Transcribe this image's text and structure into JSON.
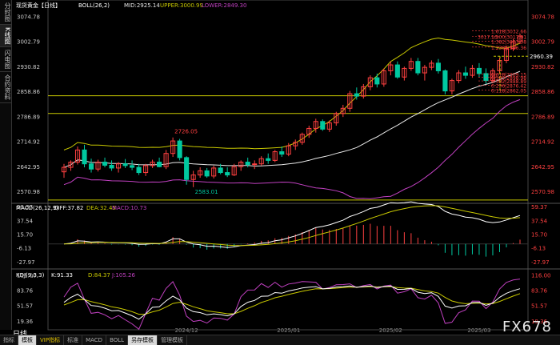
{
  "left_tabs": [
    "分时图",
    "K线图",
    "闪电图",
    "合约资料"
  ],
  "bottom_tabs": [
    "指标",
    "模板",
    "VIP指标",
    "标准",
    "MACD",
    "BOLL",
    "另存模板",
    "管理模板"
  ],
  "period_label": "日线",
  "watermark": "FX678",
  "colors": {
    "up": "#ff4040",
    "down": "#00c8a0",
    "mid": "#e8e8e8",
    "upper": "#c8c800",
    "lower": "#c040c0",
    "grid": "#c8c800",
    "bg": "#000000",
    "axis": "#888888"
  },
  "chart_data": {
    "type": "candlestick",
    "title": "现货黄金【日线】",
    "indicator_label": "BOLL(26,2)",
    "legend": {
      "mid": "MID:2925.14",
      "upper": "UPPER:3000.99",
      "lower": "LOWER:2849.30"
    },
    "price_ticks": [
      3074.78,
      3002.79,
      2930.82,
      2858.86,
      2786.89,
      2714.92,
      2642.95,
      2570.98
    ],
    "ylim": [
      2541,
      3085
    ],
    "x_labels": [
      "2024/12",
      "2025/01",
      "2025/02",
      "2025/03"
    ],
    "annotations": {
      "high": "2726.05",
      "low": "2583.01"
    },
    "fib_up_labels": [
      "1.618|3032.66",
      "1.500|3017.01",
      "1.382|3003.38",
      "1.236|2986.36"
    ],
    "fib_up_values": [
      3032.66,
      3017.01,
      3003.38,
      2986.36
    ],
    "fib_left_label": "3017.10",
    "fib_down_labels": [
      "0.618|2909.15",
      "0.500|2898.98",
      "0.382|2888.89",
      "0.236|2876.42",
      "0.118|2862.05"
    ],
    "fib_down_values": [
      2909.15,
      2898.98,
      2888.89,
      2876.42,
      2862.05
    ],
    "fib_price": "2960.39",
    "hlines": [
      2846,
      2795,
      2546
    ],
    "candles": [
      [
        2627,
        2650,
        2610,
        2640
      ],
      [
        2640,
        2660,
        2630,
        2655
      ],
      [
        2655,
        2700,
        2648,
        2690
      ],
      [
        2690,
        2705,
        2640,
        2650
      ],
      [
        2650,
        2665,
        2625,
        2635
      ],
      [
        2635,
        2662,
        2628,
        2655
      ],
      [
        2655,
        2668,
        2640,
        2646
      ],
      [
        2646,
        2660,
        2630,
        2638
      ],
      [
        2638,
        2655,
        2625,
        2650
      ],
      [
        2650,
        2664,
        2638,
        2645
      ],
      [
        2645,
        2660,
        2632,
        2640
      ],
      [
        2640,
        2650,
        2618,
        2625
      ],
      [
        2625,
        2650,
        2615,
        2645
      ],
      [
        2645,
        2662,
        2638,
        2655
      ],
      [
        2655,
        2668,
        2640,
        2642
      ],
      [
        2642,
        2690,
        2635,
        2680
      ],
      [
        2680,
        2726,
        2670,
        2716
      ],
      [
        2716,
        2722,
        2660,
        2668
      ],
      [
        2668,
        2672,
        2590,
        2605
      ],
      [
        2605,
        2630,
        2583,
        2618
      ],
      [
        2618,
        2640,
        2610,
        2630
      ],
      [
        2630,
        2638,
        2610,
        2615
      ],
      [
        2615,
        2645,
        2608,
        2638
      ],
      [
        2638,
        2650,
        2620,
        2625
      ],
      [
        2625,
        2640,
        2612,
        2618
      ],
      [
        2618,
        2650,
        2615,
        2642
      ],
      [
        2642,
        2660,
        2630,
        2655
      ],
      [
        2655,
        2668,
        2640,
        2648
      ],
      [
        2648,
        2660,
        2635,
        2650
      ],
      [
        2650,
        2672,
        2645,
        2665
      ],
      [
        2665,
        2680,
        2650,
        2660
      ],
      [
        2660,
        2690,
        2655,
        2685
      ],
      [
        2685,
        2700,
        2670,
        2678
      ],
      [
        2678,
        2710,
        2672,
        2702
      ],
      [
        2702,
        2720,
        2690,
        2712
      ],
      [
        2712,
        2740,
        2705,
        2735
      ],
      [
        2735,
        2760,
        2725,
        2752
      ],
      [
        2752,
        2780,
        2740,
        2772
      ],
      [
        2772,
        2778,
        2745,
        2750
      ],
      [
        2750,
        2775,
        2742,
        2768
      ],
      [
        2768,
        2800,
        2760,
        2795
      ],
      [
        2795,
        2820,
        2785,
        2810
      ],
      [
        2810,
        2860,
        2800,
        2852
      ],
      [
        2852,
        2870,
        2835,
        2845
      ],
      [
        2845,
        2880,
        2838,
        2872
      ],
      [
        2872,
        2905,
        2862,
        2898
      ],
      [
        2898,
        2910,
        2870,
        2880
      ],
      [
        2880,
        2925,
        2872,
        2918
      ],
      [
        2918,
        2945,
        2905,
        2935
      ],
      [
        2935,
        2945,
        2895,
        2900
      ],
      [
        2900,
        2930,
        2890,
        2925
      ],
      [
        2925,
        2955,
        2918,
        2945
      ],
      [
        2945,
        2955,
        2905,
        2912
      ],
      [
        2912,
        2935,
        2890,
        2928
      ],
      [
        2928,
        2948,
        2920,
        2940
      ],
      [
        2940,
        2952,
        2910,
        2918
      ],
      [
        2918,
        2922,
        2850,
        2860
      ],
      [
        2860,
        2895,
        2850,
        2890
      ],
      [
        2890,
        2920,
        2882,
        2912
      ],
      [
        2912,
        2930,
        2895,
        2905
      ],
      [
        2905,
        2935,
        2898,
        2925
      ],
      [
        2925,
        2940,
        2900,
        2910
      ],
      [
        2910,
        2925,
        2880,
        2890
      ],
      [
        2890,
        2925,
        2885,
        2918
      ],
      [
        2918,
        2955,
        2910,
        2948
      ],
      [
        2948,
        2990,
        2940,
        2982
      ],
      [
        2982,
        3010,
        2975,
        3002
      ],
      [
        3002,
        3025,
        2995,
        3018
      ]
    ],
    "macd": {
      "ticks": [
        59.37,
        37.54,
        15.7,
        -6.13,
        -27.97
      ],
      "ylim": [
        -32,
        62
      ],
      "legend": [
        "MACD(26,12,9)",
        "DIFF:37.82",
        "DEA:32.45",
        "MACD:10.73"
      ]
    },
    "kdj": {
      "ticks": [
        116.0,
        83.76,
        51.57,
        19.36
      ],
      "ylim": [
        14,
        122
      ],
      "legend": [
        "KDJ(9,3,3)",
        "K:91.33",
        "D:84.37",
        "J:105.26"
      ]
    }
  }
}
